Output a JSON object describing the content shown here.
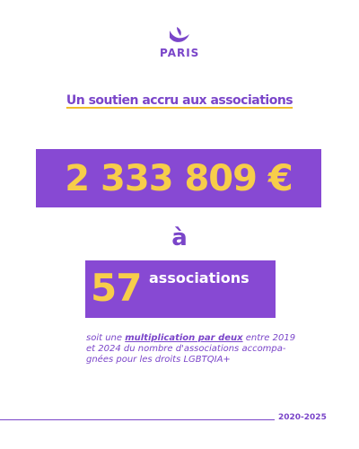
{
  "logo": {
    "text": "PARIS"
  },
  "headline": "Un soutien accru aux associations",
  "amount": "2 333 809 €",
  "connector": "à",
  "count": {
    "number": "57",
    "label": "associations"
  },
  "description": {
    "before": "soit une ",
    "emphasis": "multiplication par deux",
    "after": " entre 2019 et 2024 du nombre d'associations accompa-gnées pour les droits LGBTQIA+"
  },
  "footer": {
    "years": "2020-2025"
  },
  "colors": {
    "purple": "#8749d3",
    "text_purple": "#7a45c9",
    "yellow": "#f7cd4a"
  }
}
